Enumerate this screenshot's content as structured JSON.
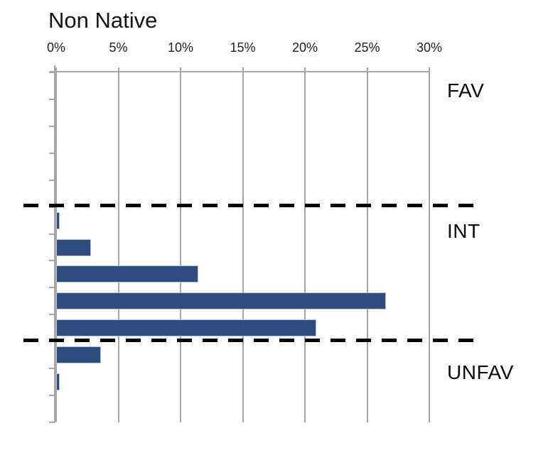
{
  "chart_data": {
    "type": "bar",
    "orientation": "horizontal",
    "title": "Non Native",
    "xlabel": "",
    "ylabel": "",
    "grid": true,
    "legend": false,
    "x_axis": {
      "position": "top",
      "min": 0,
      "max": 30,
      "step": 5,
      "unit": "%",
      "tick_labels": [
        "0%",
        "5%",
        "10%",
        "15%",
        "20%",
        "25%",
        "30%"
      ]
    },
    "num_rows": 13,
    "sections": [
      {
        "label": "FAV",
        "values": [
          0,
          0,
          0,
          0,
          0
        ]
      },
      {
        "label": "INT",
        "values": [
          0.3,
          2.8,
          11.4,
          26.5,
          20.9
        ]
      },
      {
        "label": "UNFAV",
        "values": [
          3.6,
          0.3,
          0
        ]
      }
    ],
    "separators_after_sections": [
      "FAV",
      "INT"
    ],
    "colors": {
      "bar": "#2d4d7c",
      "bar_border": "#b7c4d9",
      "gridline": "#a6a6a6",
      "axis": "#a6a6a6",
      "separator": "#000000",
      "text": "#141414",
      "background": "#ffffff"
    }
  }
}
